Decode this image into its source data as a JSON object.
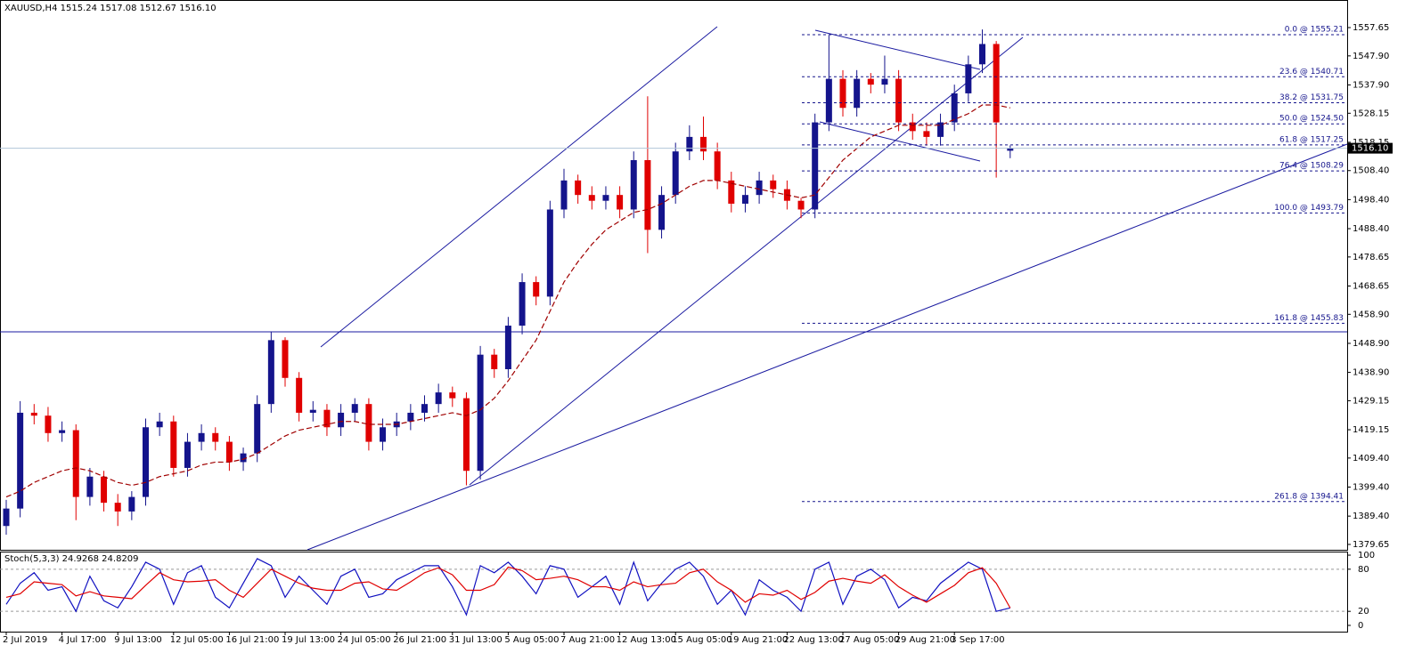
{
  "chart_data": [
    {
      "type": "candlestick",
      "title": "XAUUSD,H4  1515.24 1517.08 1512.67 1516.10",
      "categories": [
        "2 Jul 2019",
        null,
        null,
        null,
        "4 Jul 17:00",
        null,
        null,
        null,
        "9 Jul 13:00",
        null,
        null,
        null,
        "12 Jul 05:00",
        null,
        null,
        null,
        "16 Jul 21:00",
        null,
        null,
        null,
        "19 Jul 13:00",
        null,
        null,
        null,
        "24 Jul 05:00",
        null,
        null,
        null,
        "26 Jul 21:00",
        null,
        null,
        null,
        "31 Jul 13:00",
        null,
        null,
        null,
        "5 Aug 05:00",
        null,
        null,
        null,
        "7 Aug 21:00",
        null,
        null,
        null,
        "12 Aug 13:00",
        null,
        null,
        null,
        "15 Aug 05:00",
        null,
        null,
        null,
        "19 Aug 21:00",
        null,
        null,
        null,
        "22 Aug 13:00",
        null,
        null,
        null,
        "27 Aug 05:00",
        null,
        null,
        null,
        "29 Aug 21:00",
        null,
        null,
        null,
        "3 Sep 17:00",
        null,
        null,
        null,
        null
      ],
      "open": [
        1386,
        1392,
        1425,
        1424,
        1418,
        1419,
        1396,
        1403,
        1394,
        1391,
        1396,
        1420,
        1422,
        1406,
        1415,
        1418,
        1415,
        1408,
        1411,
        1428,
        1450,
        1437,
        1425,
        1426,
        1420,
        1425,
        1428,
        1415,
        1420,
        1422,
        1425,
        1428,
        1432,
        1430,
        1405,
        1445,
        1440,
        1455,
        1470,
        1465,
        1495,
        1505,
        1500,
        1498,
        1500,
        1495,
        1512,
        1488,
        1500,
        1515,
        1520,
        1515,
        1505,
        1497,
        1500,
        1505,
        1502,
        1498,
        1495,
        1525,
        1540,
        1530,
        1540,
        1538,
        1540,
        1525,
        1522,
        1520,
        1525,
        1535,
        1545,
        1552,
        1515.24
      ],
      "high": [
        1395,
        1429,
        1428,
        1427,
        1422,
        1421,
        1406,
        1405,
        1397,
        1398,
        1423,
        1425,
        1424,
        1418,
        1421,
        1420,
        1417,
        1413,
        1431,
        1453,
        1451,
        1439,
        1429,
        1428,
        1428,
        1430,
        1430,
        1423,
        1425,
        1428,
        1431,
        1435,
        1434,
        1432,
        1448,
        1447,
        1458,
        1473,
        1472,
        1498,
        1509,
        1507,
        1503,
        1503,
        1503,
        1515,
        1534,
        1503,
        1518,
        1524,
        1527,
        1518,
        1508,
        1503,
        1508,
        1507,
        1505,
        1499,
        1528,
        1555,
        1543,
        1543,
        1542,
        1548,
        1543,
        1528,
        1525,
        1528,
        1538,
        1548,
        1557,
        1553,
        1517.08
      ],
      "low": [
        1383,
        1389,
        1421,
        1415,
        1415,
        1388,
        1393,
        1391,
        1386,
        1388,
        1393,
        1417,
        1403,
        1403,
        1412,
        1412,
        1405,
        1405,
        1408,
        1425,
        1434,
        1422,
        1422,
        1417,
        1417,
        1422,
        1412,
        1412,
        1417,
        1419,
        1422,
        1425,
        1427,
        1400,
        1402,
        1437,
        1437,
        1452,
        1462,
        1462,
        1492,
        1497,
        1495,
        1495,
        1492,
        1492,
        1480,
        1485,
        1497,
        1512,
        1512,
        1502,
        1494,
        1494,
        1497,
        1499,
        1495,
        1492,
        1492,
        1522,
        1527,
        1527,
        1535,
        1535,
        1522,
        1519,
        1517,
        1517,
        1522,
        1532,
        1542,
        1506,
        1512.67
      ],
      "close": [
        1392,
        1425,
        1424,
        1418,
        1419,
        1396,
        1403,
        1394,
        1391,
        1396,
        1420,
        1422,
        1406,
        1415,
        1418,
        1415,
        1408,
        1411,
        1428,
        1450,
        1437,
        1425,
        1426,
        1420,
        1425,
        1428,
        1415,
        1420,
        1422,
        1425,
        1428,
        1432,
        1430,
        1405,
        1445,
        1440,
        1455,
        1470,
        1465,
        1495,
        1505,
        1500,
        1498,
        1500,
        1495,
        1512,
        1488,
        1500,
        1515,
        1520,
        1515,
        1505,
        1497,
        1500,
        1505,
        1502,
        1498,
        1495,
        1525,
        1540,
        1530,
        1540,
        1538,
        1540,
        1525,
        1522,
        1520,
        1525,
        1535,
        1545,
        1552,
        1525,
        1516.1
      ],
      "up_color": "#14148c",
      "down_color": "#e00000",
      "ma": {
        "color": "#a00000",
        "values": [
          1396,
          1398,
          1401,
          1403,
          1405,
          1406,
          1405,
          1403,
          1401,
          1400,
          1401,
          1403,
          1404,
          1405,
          1407,
          1408,
          1408,
          1409,
          1411,
          1414,
          1417,
          1419,
          1420,
          1421,
          1422,
          1422,
          1421,
          1421,
          1421,
          1422,
          1423,
          1424,
          1425,
          1424,
          1426,
          1430,
          1436,
          1443,
          1450,
          1460,
          1470,
          1477,
          1483,
          1488,
          1491,
          1494,
          1495,
          1497,
          1500,
          1503,
          1505,
          1505,
          1504,
          1503,
          1502,
          1501,
          1500,
          1499,
          1500,
          1506,
          1512,
          1516,
          1520,
          1522,
          1524,
          1524,
          1524,
          1524,
          1526,
          1528,
          1531,
          1531,
          1530
        ]
      },
      "ylim": [
        1377.8,
        1567.15
      ],
      "yticks": [
        1557.65,
        {
          "value": 1547.9,
          "label": "1547.90"
        },
        {
          "value": 1537.9,
          "label": "1537.90"
        },
        1528.15,
        1518.15,
        {
          "value": 1508.4,
          "label": "1508.40"
        },
        {
          "value": 1498.4,
          "label": "1498.40"
        },
        {
          "value": 1488.4,
          "label": "1488.40"
        },
        1478.65,
        1468.65,
        {
          "value": 1458.9,
          "label": "1458.90"
        },
        {
          "value": 1448.9,
          "label": "1448.90"
        },
        {
          "value": 1438.9,
          "label": "1438.90"
        },
        1429.15,
        1419.15,
        {
          "value": 1409.4,
          "label": "1409.40"
        },
        {
          "value": 1399.4,
          "label": "1399.40"
        },
        {
          "value": 1389.4,
          "label": "1389.40"
        },
        1379.65
      ],
      "last_price": {
        "value": 1516.1,
        "label": "1516.10"
      },
      "fib_color": "#14148c",
      "fib_levels": [
        {
          "label": "0.0 @ 1555.21",
          "value": 1555.21
        },
        {
          "label": "23.6 @ 1540.71",
          "value": 1540.71
        },
        {
          "label": "38.2 @ 1531.75",
          "value": 1531.75
        },
        {
          "label": "50.0 @ 1524.50",
          "value": 1524.5
        },
        {
          "label": "61.8 @ 1517.25",
          "value": 1517.25
        },
        {
          "label": "76.4 @ 1508.29",
          "value": 1508.29
        },
        {
          "label": "100.0 @ 1493.79",
          "value": 1493.79
        },
        {
          "label": "161.8 @ 1455.83",
          "value": 1455.83
        },
        {
          "label": "261.8 @ 1394.41",
          "value": 1394.41
        }
      ]
    },
    {
      "type": "line",
      "title": "Stoch(5,3,3) 24.9268 24.8209",
      "series": [
        {
          "color": "#1010c0",
          "values": [
            30,
            60,
            75,
            50,
            55,
            20,
            70,
            35,
            25,
            55,
            90,
            80,
            30,
            75,
            85,
            40,
            25,
            60,
            95,
            85,
            40,
            70,
            50,
            30,
            70,
            80,
            40,
            45,
            65,
            75,
            85,
            85,
            55,
            15,
            85,
            75,
            90,
            70,
            45,
            85,
            80,
            40,
            55,
            70,
            30,
            90,
            35,
            60,
            80,
            90,
            70,
            30,
            50,
            15,
            65,
            50,
            40,
            20,
            80,
            90,
            30,
            70,
            80,
            65,
            25,
            40,
            35,
            60,
            75,
            90,
            80,
            20,
            24.9268
          ]
        },
        {
          "color": "#e00000",
          "values": [
            40,
            45,
            62,
            60,
            58,
            42,
            48,
            42,
            40,
            38,
            57,
            75,
            65,
            62,
            63,
            65,
            50,
            40,
            60,
            80,
            70,
            60,
            53,
            50,
            50,
            60,
            62,
            52,
            50,
            62,
            75,
            82,
            72,
            50,
            50,
            58,
            83,
            78,
            65,
            67,
            70,
            65,
            55,
            55,
            50,
            62,
            55,
            58,
            60,
            75,
            80,
            62,
            50,
            33,
            45,
            43,
            50,
            37,
            47,
            63,
            67,
            63,
            60,
            72,
            55,
            43,
            33,
            45,
            57,
            75,
            82,
            60,
            24.8209
          ]
        }
      ],
      "ylim": [
        -8.9,
        105.1
      ],
      "yticks": [
        100,
        80,
        20,
        0
      ],
      "levels": [
        80,
        20
      ]
    }
  ]
}
